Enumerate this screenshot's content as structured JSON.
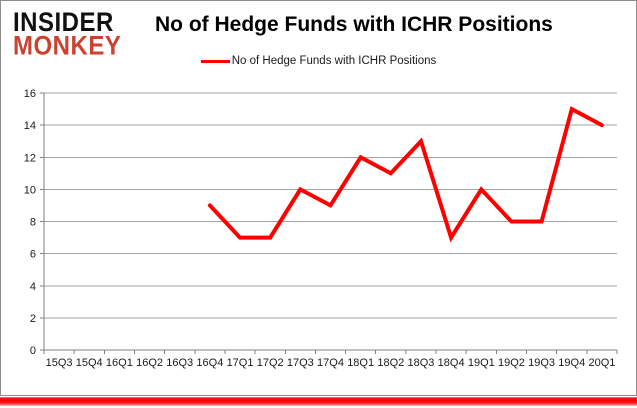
{
  "logo": {
    "line1": "INSIDER",
    "line2": "MONKEY"
  },
  "header": {
    "title": "No of Hedge Funds with ICHR Positions"
  },
  "chart_data": {
    "type": "line",
    "title": "No of Hedge Funds with ICHR Positions",
    "legend": [
      "No of Hedge Funds with ICHR Positions"
    ],
    "legend_position": "top-center",
    "categories": [
      "15Q3",
      "15Q4",
      "16Q1",
      "16Q2",
      "16Q3",
      "16Q4",
      "17Q1",
      "17Q2",
      "17Q3",
      "17Q4",
      "18Q1",
      "18Q2",
      "18Q3",
      "18Q4",
      "19Q1",
      "19Q2",
      "19Q3",
      "19Q4",
      "20Q1"
    ],
    "series": [
      {
        "name": "No of Hedge Funds with ICHR Positions",
        "color": "#ff0000",
        "values": [
          null,
          null,
          null,
          null,
          null,
          9,
          7,
          7,
          10,
          9,
          12,
          11,
          13,
          7,
          10,
          8,
          8,
          15,
          14
        ]
      }
    ],
    "xlabel": "",
    "ylabel": "",
    "ylim": [
      0,
      16
    ],
    "ytick_step": 2,
    "grid": true
  },
  "colors": {
    "line": "#ff0000",
    "logo_red": "#cb4330",
    "gridline": "#a3a3a3",
    "axis": "#808080",
    "tick_label": "#1a1a1a",
    "bottom_bar": "#ff0000",
    "frame_border": "#8e8e8e"
  }
}
